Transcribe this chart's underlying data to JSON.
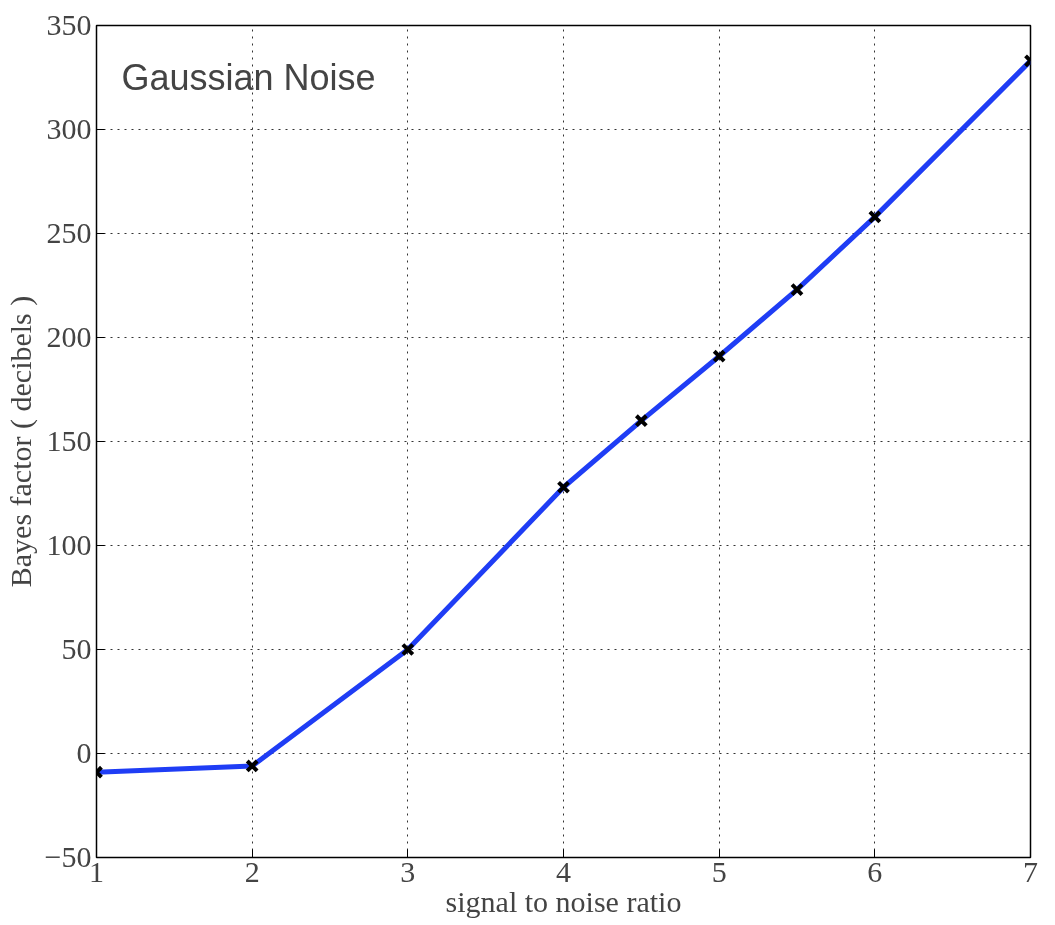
{
  "chart_data": {
    "type": "line",
    "xlabel": "signal to noise ratio",
    "ylabel": "Bayes factor ( decibels )",
    "annotations": [
      "Gaussian Noise"
    ],
    "x": [
      1,
      2,
      3,
      4,
      4.5,
      5,
      5.5,
      6,
      7
    ],
    "series": [
      {
        "color": "#1f3df5",
        "values": [
          -9,
          -6,
          50,
          128,
          160,
          191,
          223,
          258,
          333
        ]
      }
    ],
    "xlim": [
      1,
      7
    ],
    "xticks": [
      1,
      2,
      3,
      4,
      5,
      6,
      7
    ],
    "ylim": [
      -50,
      350
    ],
    "yticks": [
      {
        "value": -50,
        "label": "−50"
      },
      0,
      50,
      100,
      150,
      200,
      250,
      300,
      350
    ],
    "grid": true,
    "marker": "cross",
    "line_style": "solid"
  }
}
